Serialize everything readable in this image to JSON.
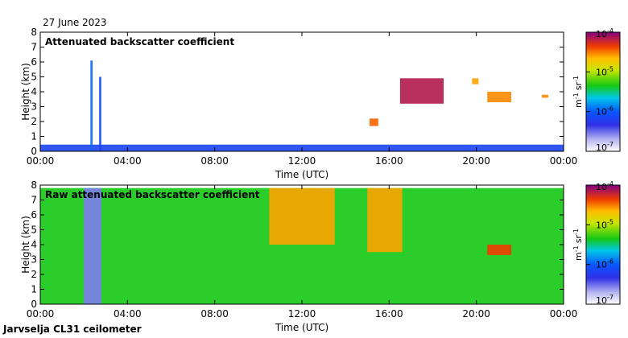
{
  "figure": {
    "date": "27 June 2023",
    "station": "Jarvselja CL31 ceilometer"
  },
  "chart_data": [
    {
      "type": "heatmap",
      "title": "Attenuated backscatter coefficient",
      "xlabel": "Time (UTC)",
      "ylabel": "Height (km)",
      "xlim": [
        0,
        24
      ],
      "ylim": [
        0,
        8
      ],
      "x_ticks": [
        "00:00",
        "04:00",
        "08:00",
        "12:00",
        "16:00",
        "20:00",
        "00:00"
      ],
      "y_ticks": [
        "0",
        "1",
        "2",
        "3",
        "4",
        "5",
        "6",
        "7",
        "8"
      ],
      "colorbar": {
        "scale": "log",
        "range": [
          1e-07,
          0.0001
        ],
        "tick_labels": [
          "10",
          "10",
          "10",
          "10"
        ],
        "tick_exponents": [
          "-7",
          "-6",
          "-5",
          "-4"
        ],
        "unit_m": "m",
        "unit_m_exp": "-1",
        "unit_sr": "sr",
        "unit_sr_exp": "-1"
      },
      "features": [
        {
          "name": "boundary layer",
          "t_start": 0,
          "t_end": 24,
          "top_km": 0.45,
          "level": 0.28
        },
        {
          "name": "precipitation streak",
          "t_start": 2.3,
          "t_end": 2.4,
          "bottom_km": 0,
          "top_km": 6.1,
          "level": 0.35
        },
        {
          "name": "precipitation streak",
          "t_start": 2.7,
          "t_end": 2.8,
          "bottom_km": 0,
          "top_km": 5.0,
          "level": 0.3
        },
        {
          "name": "low cloud",
          "t_start": 15.1,
          "t_end": 15.5,
          "bottom_km": 1.7,
          "top_km": 2.2,
          "level": 0.85
        },
        {
          "name": "mid cloud",
          "t_start": 16.5,
          "t_end": 18.5,
          "bottom_km": 3.2,
          "top_km": 4.9,
          "level": 0.95
        },
        {
          "name": "mid cloud",
          "t_start": 20.5,
          "t_end": 21.6,
          "bottom_km": 3.3,
          "top_km": 4.0,
          "level": 0.82
        },
        {
          "name": "mid cloud",
          "t_start": 19.8,
          "t_end": 20.1,
          "bottom_km": 4.5,
          "top_km": 4.9,
          "level": 0.8
        },
        {
          "name": "mid cloud",
          "t_start": 23.0,
          "t_end": 23.3,
          "bottom_km": 3.6,
          "top_km": 3.8,
          "level": 0.82
        }
      ]
    },
    {
      "type": "heatmap",
      "title": "Raw attenuated backscatter coefficient",
      "xlabel": "Time (UTC)",
      "ylabel": "Height (km)",
      "xlim": [
        0,
        24
      ],
      "ylim": [
        0,
        8
      ],
      "x_ticks": [
        "00:00",
        "04:00",
        "08:00",
        "12:00",
        "16:00",
        "20:00",
        "00:00"
      ],
      "y_ticks": [
        "0",
        "1",
        "2",
        "3",
        "4",
        "5",
        "6",
        "7",
        "8"
      ],
      "colorbar": {
        "scale": "log",
        "range": [
          1e-07,
          0.0001
        ],
        "tick_labels": [
          "10",
          "10",
          "10",
          "10"
        ],
        "tick_exponents": [
          "-7",
          "-6",
          "-5",
          "-4"
        ],
        "unit_m": "m",
        "unit_m_exp": "-1",
        "unit_sr": "sr",
        "unit_sr_exp": "-1"
      },
      "features": [
        {
          "name": "noise background",
          "t_start": 0,
          "t_end": 24,
          "bottom_km": 0,
          "top_km": 7.8,
          "level": 0.55
        },
        {
          "name": "precipitation column",
          "t_start": 2.0,
          "t_end": 2.8,
          "bottom_km": 0,
          "top_km": 7.8,
          "level": 0.15
        },
        {
          "name": "high noise period",
          "t_start": 10.5,
          "t_end": 13.5,
          "bottom_km": 4.0,
          "top_km": 7.8,
          "level": 0.8
        },
        {
          "name": "high noise period",
          "t_start": 15.0,
          "t_end": 16.6,
          "bottom_km": 3.5,
          "top_km": 7.8,
          "level": 0.8
        },
        {
          "name": "mid cloud",
          "t_start": 20.5,
          "t_end": 21.6,
          "bottom_km": 3.3,
          "top_km": 4.0,
          "level": 0.88
        }
      ]
    }
  ]
}
